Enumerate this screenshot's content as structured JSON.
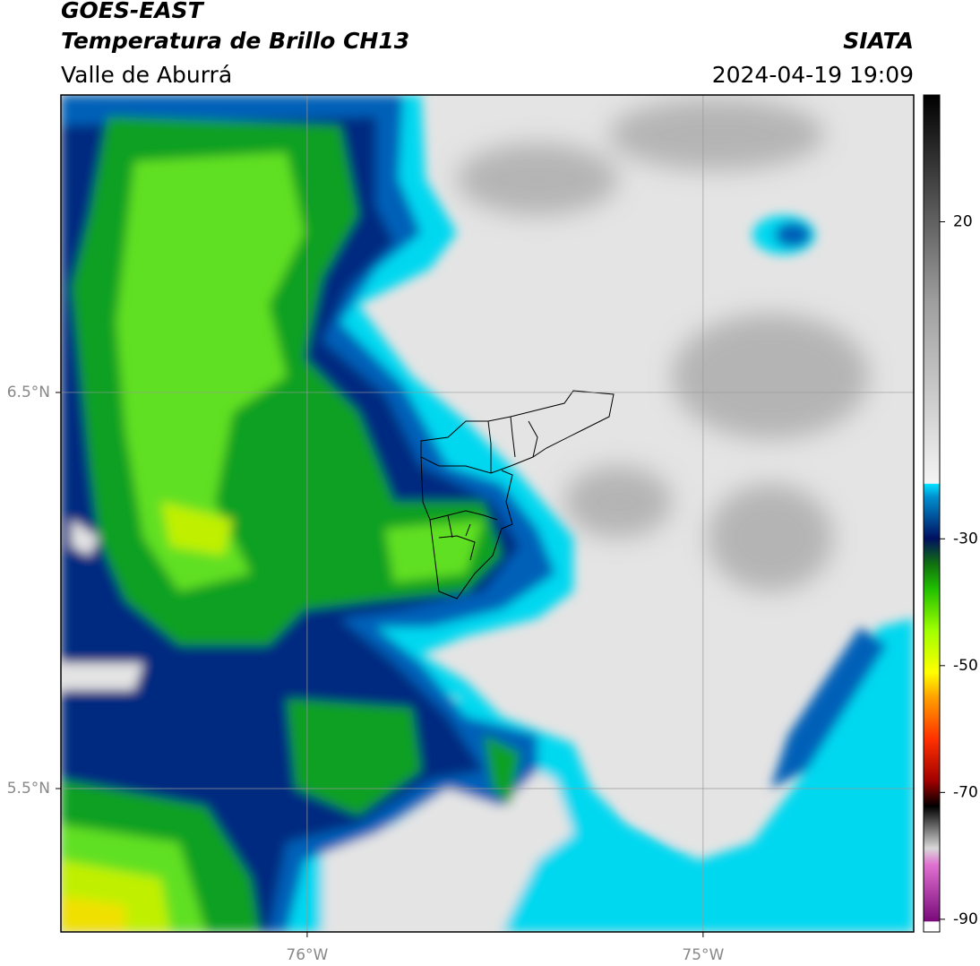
{
  "header": {
    "title": "GOES-EAST",
    "subtitle": "Temperatura de Brillo CH13",
    "region": "Valle de Aburrá",
    "source": "SIATA",
    "timestamp": "2024-04-19 19:09"
  },
  "map": {
    "xlim": [
      -76.622,
      -74.468
    ],
    "ylim": [
      5.138,
      7.251
    ],
    "xticks": [
      {
        "value": -76,
        "label": "76°W"
      },
      {
        "value": -75,
        "label": "75°W"
      }
    ],
    "yticks": [
      {
        "value": 5.5,
        "label": "5.5°N"
      },
      {
        "value": 6.5,
        "label": "6.5°N"
      }
    ],
    "grid": true
  },
  "colorbar": {
    "lim": [
      -92,
      40
    ],
    "ticks": [
      -90,
      -70,
      -50,
      -30,
      20
    ]
  }
}
